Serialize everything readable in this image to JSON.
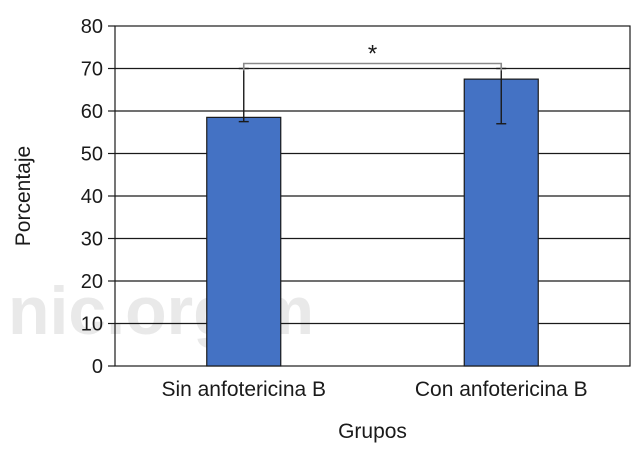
{
  "chart_data": {
    "type": "bar",
    "categories": [
      "Sin anfotericina B",
      "Con anfotericina B"
    ],
    "values": [
      58.5,
      67.5
    ],
    "error_bars": [
      {
        "low": 57.5,
        "high": 70
      },
      {
        "low": 57,
        "high": 70
      }
    ],
    "xlabel": "Grupos",
    "ylabel": "Porcentaje",
    "ylim": [
      0,
      80
    ],
    "yticks": [
      0,
      10,
      20,
      30,
      40,
      50,
      60,
      70,
      80
    ],
    "grid": true,
    "bar_color": "#4472C4",
    "significance": {
      "between": [
        0,
        1
      ],
      "label": "*",
      "y": 70
    },
    "watermark": "nic.org.m"
  }
}
